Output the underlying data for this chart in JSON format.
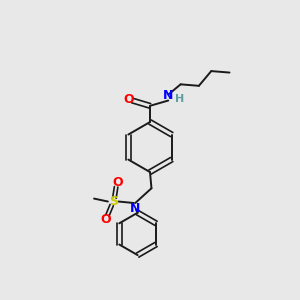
{
  "bg_color": "#e8e8e8",
  "bond_color": "#1a1a1a",
  "atom_colors": {
    "O": "#ff0000",
    "N_amide": "#0000ff",
    "H": "#5f9ea0",
    "S": "#cccc00",
    "N_sulfonyl": "#0000ff"
  },
  "figsize": [
    3.0,
    3.0
  ],
  "dpi": 100,
  "xlim": [
    0,
    10
  ],
  "ylim": [
    0,
    10
  ]
}
